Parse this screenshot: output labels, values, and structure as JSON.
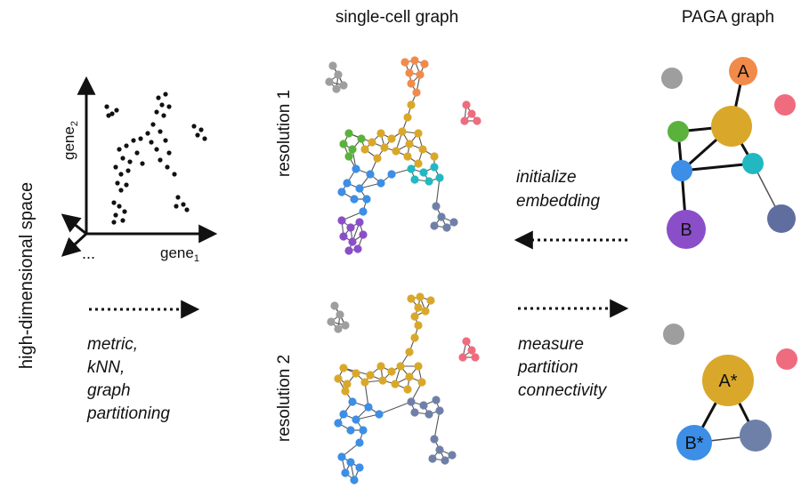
{
  "headers": {
    "single_cell": "single-cell graph",
    "paga": "PAGA graph"
  },
  "left": {
    "side_label": "high-dimensional space",
    "axis_y_label": "gene",
    "axis_y_sub": "2",
    "axis_x_label": "gene",
    "axis_x_sub": "1",
    "ellipsis": "...",
    "steps": [
      "metric,",
      "kNN,",
      "graph",
      "partitioning"
    ]
  },
  "middle": {
    "resolution1": "resolution 1",
    "resolution2": "resolution 2"
  },
  "right_text": {
    "embed": [
      "initialize",
      "embedding"
    ],
    "measure": [
      "measure",
      "partition",
      "connectivity"
    ]
  },
  "paga1": {
    "nodes": [
      {
        "id": "grey",
        "label": "",
        "color": "#9e9e9e"
      },
      {
        "id": "A",
        "label": "A",
        "color": "#f28a4a"
      },
      {
        "id": "pink",
        "label": "",
        "color": "#ef6c7e"
      },
      {
        "id": "gold",
        "label": "",
        "color": "#d9a82a"
      },
      {
        "id": "green",
        "label": "",
        "color": "#5ab23c"
      },
      {
        "id": "blue",
        "label": "",
        "color": "#3c8ee6"
      },
      {
        "id": "cyan",
        "label": "",
        "color": "#21b8c2"
      },
      {
        "id": "B",
        "label": "B",
        "color": "#8a4fc8"
      },
      {
        "id": "slate",
        "label": "",
        "color": "#5f6e9e"
      }
    ]
  },
  "paga2": {
    "nodes": [
      {
        "id": "grey",
        "label": "",
        "color": "#9e9e9e"
      },
      {
        "id": "pink",
        "label": "",
        "color": "#ef6c7e"
      },
      {
        "id": "A*",
        "label": "A*",
        "color": "#d9a82a"
      },
      {
        "id": "B*",
        "label": "B*",
        "color": "#3c8ee6"
      },
      {
        "id": "slate",
        "label": "",
        "color": "#6f80a8"
      }
    ]
  },
  "colors": {
    "orange": "#f28a4a",
    "gold": "#d9a82a",
    "green": "#5ab23c",
    "blue": "#3c8ee6",
    "cyan": "#21b8c2",
    "purple": "#8a4fc8",
    "slate": "#6f80a8",
    "grey": "#9e9e9e",
    "pink": "#ef6c7e"
  }
}
